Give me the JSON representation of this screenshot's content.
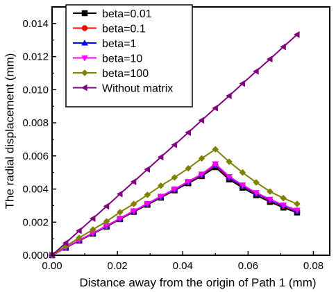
{
  "chart_data": {
    "type": "line",
    "title": "",
    "xlabel": "Distance away from the origin of Path 1 (mm)",
    "ylabel": "The radial displacement (mm)",
    "xlim": [
      0.0,
      0.085
    ],
    "ylim": [
      0.0,
      0.015
    ],
    "xticks": [
      0.0,
      0.02,
      0.04,
      0.06,
      0.08
    ],
    "xtick_labels": [
      "0.00",
      "0.02",
      "0.04",
      "0.06",
      "0.08"
    ],
    "yticks": [
      0.0,
      0.002,
      0.004,
      0.006,
      0.008,
      0.01,
      0.012,
      0.014
    ],
    "ytick_labels": [
      "0.000",
      "0.002",
      "0.004",
      "0.006",
      "0.008",
      "0.010",
      "0.012",
      "0.014"
    ],
    "grid": false,
    "legend_position": "top-left",
    "x": [
      0.0,
      0.0042,
      0.0083,
      0.0125,
      0.0167,
      0.0208,
      0.025,
      0.0292,
      0.0333,
      0.0375,
      0.0417,
      0.0458,
      0.05,
      0.0542,
      0.0583,
      0.0625,
      0.0667,
      0.0708,
      0.075
    ],
    "series": [
      {
        "name": "beta=0.01",
        "color": "#000000",
        "marker": "square",
        "values": [
          0.0,
          0.00045,
          0.00088,
          0.0013,
          0.00173,
          0.00218,
          0.00262,
          0.00305,
          0.00348,
          0.00392,
          0.00435,
          0.00478,
          0.00532,
          0.00458,
          0.00408,
          0.00362,
          0.00322,
          0.00288,
          0.00258
        ]
      },
      {
        "name": "beta=0.1",
        "color": "#ff0000",
        "marker": "circle",
        "values": [
          0.0,
          0.00046,
          0.0009,
          0.00132,
          0.00176,
          0.0022,
          0.00265,
          0.00309,
          0.00352,
          0.00397,
          0.0044,
          0.00484,
          0.00545,
          0.00468,
          0.00418,
          0.00372,
          0.00332,
          0.00298,
          0.00268
        ]
      },
      {
        "name": "beta=1",
        "color": "#0000ff",
        "marker": "triangle-up",
        "values": [
          0.0,
          0.00046,
          0.0009,
          0.00133,
          0.00177,
          0.00222,
          0.00266,
          0.0031,
          0.00354,
          0.00398,
          0.00442,
          0.00487,
          0.00548,
          0.0047,
          0.0042,
          0.00374,
          0.00334,
          0.003,
          0.0027
        ]
      },
      {
        "name": "beta=10",
        "color": "#ff00ff",
        "marker": "triangle-down",
        "values": [
          0.0,
          0.00047,
          0.00091,
          0.00134,
          0.00178,
          0.00223,
          0.00268,
          0.00312,
          0.00356,
          0.004,
          0.00445,
          0.0049,
          0.00552,
          0.00475,
          0.00424,
          0.00378,
          0.00338,
          0.00303,
          0.00272
        ]
      },
      {
        "name": "beta=100",
        "color": "#808000",
        "marker": "diamond",
        "values": [
          0.0,
          0.00055,
          0.00105,
          0.00155,
          0.00205,
          0.0026,
          0.0031,
          0.00365,
          0.0042,
          0.0047,
          0.00525,
          0.00585,
          0.0064,
          0.00565,
          0.005,
          0.0044,
          0.00385,
          0.00345,
          0.0031
        ]
      },
      {
        "name": "Without matrix",
        "color": "#800080",
        "marker": "triangle-left",
        "values": [
          0.0,
          0.00074,
          0.00148,
          0.00222,
          0.00296,
          0.0037,
          0.00444,
          0.00519,
          0.00593,
          0.00667,
          0.00741,
          0.00815,
          0.00889,
          0.00963,
          0.01037,
          0.01111,
          0.01185,
          0.01259,
          0.01333
        ]
      }
    ]
  }
}
